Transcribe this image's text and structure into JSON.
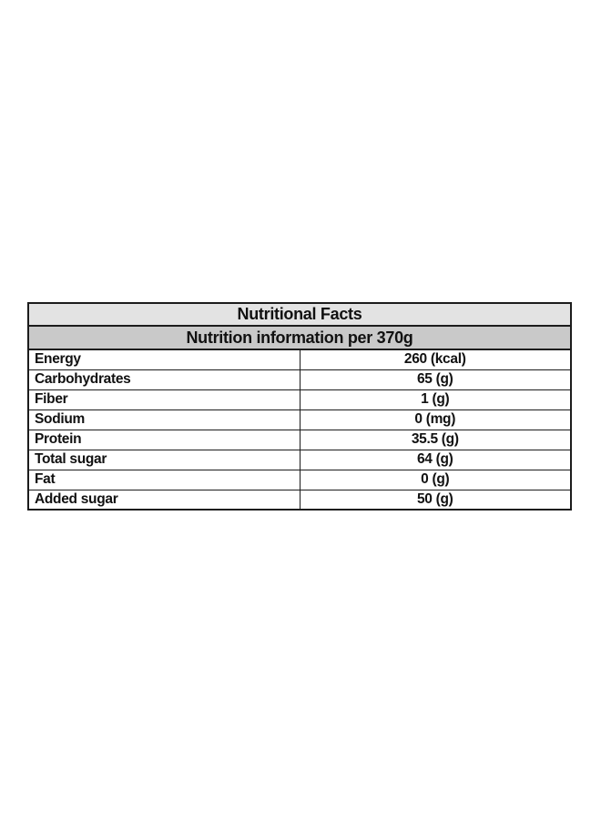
{
  "table": {
    "title": "Nutritional Facts",
    "subtitle": "Nutrition information per 370g",
    "rows": [
      {
        "label": "Energy",
        "value": "260 (kcal)"
      },
      {
        "label": "Carbohydrates",
        "value": "65 (g)"
      },
      {
        "label": "Fiber",
        "value": "1 (g)"
      },
      {
        "label": "Sodium",
        "value": "0 (mg)"
      },
      {
        "label": "Protein",
        "value": "35.5 (g)"
      },
      {
        "label": "Total sugar",
        "value": "64 (g)"
      },
      {
        "label": "Fat",
        "value": "0 (g)"
      },
      {
        "label": "Added sugar",
        "value": "50 (g)"
      }
    ]
  },
  "colors": {
    "page-bg": "#ffffff",
    "title-bg": "#e3e3e3",
    "subtitle-bg": "#c9c9c9",
    "border": "#1c1c1c",
    "text": "#111111"
  }
}
